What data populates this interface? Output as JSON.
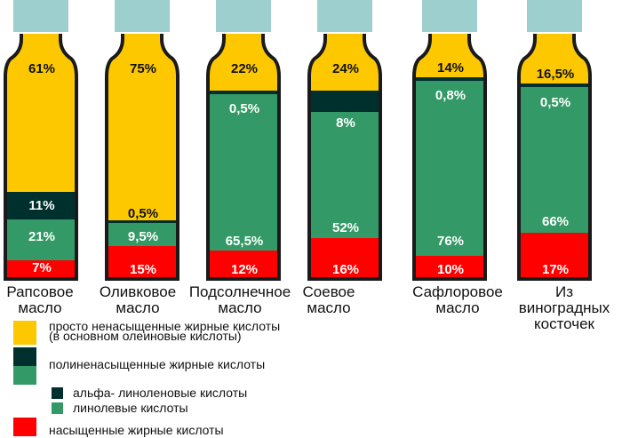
{
  "colors": {
    "cap": "#9ecfcf",
    "outline": "#1a1a1a",
    "mono": "#fdc800",
    "alpha": "#00302d",
    "linoleic": "#339966",
    "saturated": "#ff0000"
  },
  "bottles": [
    {
      "name_line1": "Рапсовое",
      "name_line2": "масло",
      "name_line3": "",
      "labels": {
        "mono": "61%",
        "alpha": "11%",
        "linoleic": "21%",
        "saturated": "7%"
      }
    },
    {
      "name_line1": "Оливковое",
      "name_line2": "масло",
      "name_line3": "",
      "labels": {
        "mono": "75%",
        "alpha": "0,5%",
        "linoleic": "9,5%",
        "saturated": "15%"
      }
    },
    {
      "name_line1": "Подсолнечное",
      "name_line2": "масло",
      "name_line3": "",
      "labels": {
        "mono": "22%",
        "alpha": "0,5%",
        "linoleic": "65,5%",
        "saturated": "12%"
      }
    },
    {
      "name_line1": "Соевое",
      "name_line2": "масло",
      "name_line3": "",
      "labels": {
        "mono": "24%",
        "alpha": "8%",
        "linoleic": "52%",
        "saturated": "16%"
      }
    },
    {
      "name_line1": "Сафлоровое",
      "name_line2": "масло",
      "name_line3": "",
      "labels": {
        "mono": "14%",
        "alpha": "0,8%",
        "linoleic": "76%",
        "saturated": "10%"
      }
    },
    {
      "name_line1": "Из",
      "name_line2": "виноградных",
      "name_line3": "косточек",
      "labels": {
        "mono": "16,5%",
        "alpha": "0,5%",
        "linoleic": "66%",
        "saturated": "17%"
      }
    }
  ],
  "legend": {
    "mono_line1": "просто ненасыщенные жирные кислоты",
    "mono_line2": "(в основном олеиновые кислоты)",
    "poly": "полиненасыщенные жирные кислоты",
    "alpha": "альфа- линоленовые кислоты",
    "linoleic": "линолевые кислоты",
    "saturated": "насыщенные жирные кислоты"
  },
  "chart_data": {
    "type": "bar",
    "title": "",
    "stacked": true,
    "categories": [
      "Рапсовое масло",
      "Оливковое масло",
      "Подсолнечное масло",
      "Соевое масло",
      "Сафлоровое масло",
      "Из виноградных косточек"
    ],
    "series": [
      {
        "name": "просто ненасыщенные жирные кислоты (в основном олеиновые кислоты)",
        "color": "#fdc800",
        "values": [
          61,
          75,
          22,
          24,
          14,
          16.5
        ]
      },
      {
        "name": "альфа- линоленовые кислоты",
        "color": "#00302d",
        "values": [
          11,
          0.5,
          0.5,
          8,
          0.8,
          0.5
        ]
      },
      {
        "name": "линолевые кислоты",
        "color": "#339966",
        "values": [
          21,
          9.5,
          65.5,
          52,
          76,
          66
        ]
      },
      {
        "name": "насыщенные жирные кислоты",
        "color": "#ff0000",
        "values": [
          7,
          15,
          12,
          16,
          10,
          17
        ]
      }
    ],
    "group_label": "полиненасыщенные жирные кислоты",
    "xlabel": "",
    "ylabel": "%",
    "ylim": [
      0,
      100
    ]
  }
}
